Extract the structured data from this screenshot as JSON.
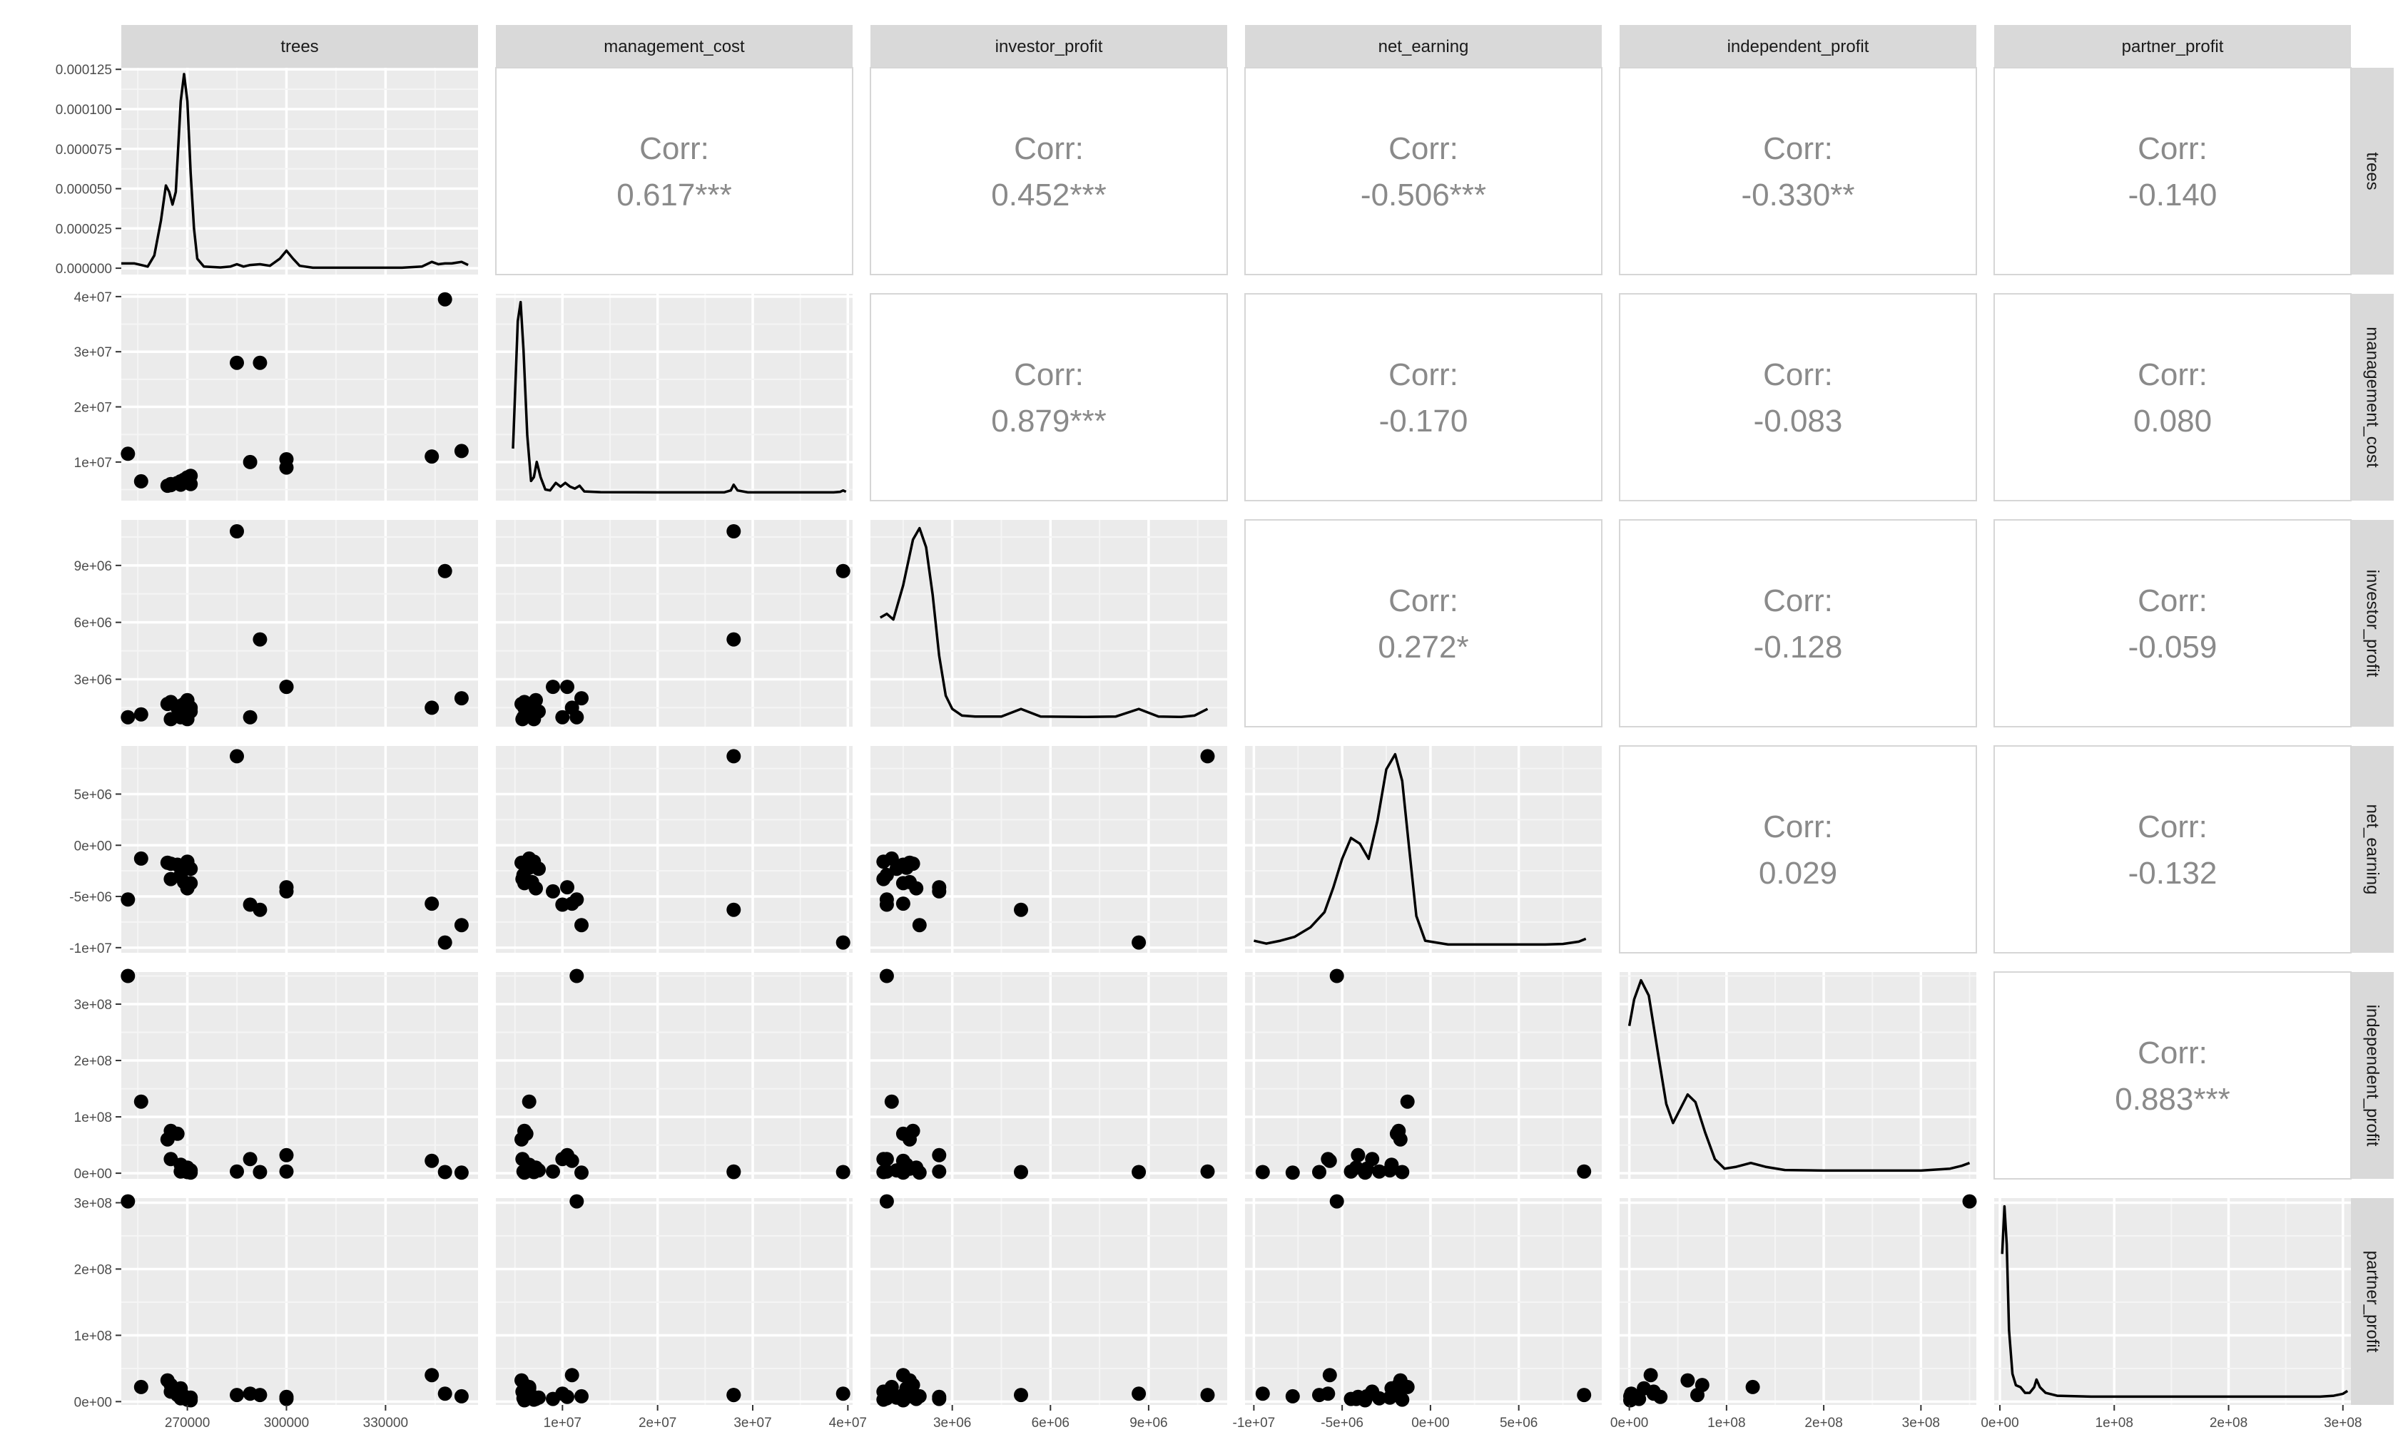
{
  "chart_data": {
    "type": "scatter",
    "variables": [
      "trees",
      "management_cost",
      "investor_profit",
      "net_earning",
      "independent_profit",
      "partner_profit"
    ],
    "corr_label": "Corr:",
    "correlations": [
      {
        "row": "trees",
        "col": "management_cost",
        "value": "0.617***"
      },
      {
        "row": "trees",
        "col": "investor_profit",
        "value": "0.452***"
      },
      {
        "row": "trees",
        "col": "net_earning",
        "value": "-0.506***"
      },
      {
        "row": "trees",
        "col": "independent_profit",
        "value": "-0.330**"
      },
      {
        "row": "trees",
        "col": "partner_profit",
        "value": "-0.140"
      },
      {
        "row": "management_cost",
        "col": "investor_profit",
        "value": "0.879***"
      },
      {
        "row": "management_cost",
        "col": "net_earning",
        "value": "-0.170"
      },
      {
        "row": "management_cost",
        "col": "independent_profit",
        "value": "-0.083"
      },
      {
        "row": "management_cost",
        "col": "partner_profit",
        "value": "0.080"
      },
      {
        "row": "investor_profit",
        "col": "net_earning",
        "value": "0.272*"
      },
      {
        "row": "investor_profit",
        "col": "independent_profit",
        "value": "-0.128"
      },
      {
        "row": "investor_profit",
        "col": "partner_profit",
        "value": "-0.059"
      },
      {
        "row": "net_earning",
        "col": "independent_profit",
        "value": "0.029"
      },
      {
        "row": "net_earning",
        "col": "partner_profit",
        "value": "-0.132"
      },
      {
        "row": "independent_profit",
        "col": "partner_profit",
        "value": "0.883***"
      }
    ],
    "axes": {
      "trees": {
        "range": [
          250000,
          358000
        ],
        "ticks": [
          270000,
          300000,
          330000
        ],
        "tick_labels": [
          "270000",
          "300000",
          "330000"
        ]
      },
      "management_cost": {
        "range": [
          3000000,
          40500000
        ],
        "ticks": [
          10000000,
          20000000,
          30000000,
          40000000
        ],
        "tick_labels": [
          "1e+07",
          "2e+07",
          "3e+07",
          "4e+07"
        ]
      },
      "investor_profit": {
        "range": [
          500000,
          11400000
        ],
        "ticks": [
          3000000,
          6000000,
          9000000
        ],
        "tick_labels": [
          "3e+06",
          "6e+06",
          "9e+06"
        ]
      },
      "net_earning": {
        "range": [
          -10500000,
          9700000
        ],
        "ticks": [
          -10000000,
          -5000000,
          0,
          5000000
        ],
        "tick_labels": [
          "-1e+07",
          "-5e+06",
          "0e+00",
          "5e+06"
        ]
      },
      "independent_profit": {
        "range": [
          -10000000,
          357000000
        ],
        "ticks": [
          0,
          100000000,
          200000000,
          300000000
        ],
        "tick_labels": [
          "0e+00",
          "1e+08",
          "2e+08",
          "3e+08"
        ]
      },
      "partner_profit": {
        "range": [
          -5000000,
          307000000
        ],
        "ticks": [
          0,
          100000000,
          200000000,
          300000000
        ],
        "tick_labels": [
          "0e+00",
          "1e+08",
          "2e+08",
          "3e+08"
        ]
      }
    },
    "density_axis": {
      "range": [
        -4e-06,
        0.000126
      ],
      "ticks": [
        0,
        2.5e-05,
        5e-05,
        7.5e-05,
        0.0001,
        0.000125
      ],
      "tick_labels": [
        "0.000000",
        "0.000025",
        "0.000050",
        "0.000075",
        "0.000100",
        "0.000125"
      ]
    },
    "points": [
      {
        "trees": 252000,
        "management_cost": 11500000,
        "investor_profit": 1000000,
        "net_earning": -5300000,
        "independent_profit": 350000000,
        "partner_profit": 302000000
      },
      {
        "trees": 256000,
        "management_cost": 6500000,
        "investor_profit": 1150000,
        "net_earning": -1300000,
        "independent_profit": 127000000,
        "partner_profit": 22000000
      },
      {
        "trees": 264000,
        "management_cost": 5700000,
        "investor_profit": 1700000,
        "net_earning": -1700000,
        "independent_profit": 60000000,
        "partner_profit": 32000000
      },
      {
        "trees": 265000,
        "management_cost": 6000000,
        "investor_profit": 1800000,
        "net_earning": -1800000,
        "independent_profit": 75000000,
        "partner_profit": 25000000
      },
      {
        "trees": 265000,
        "management_cost": 5800000,
        "investor_profit": 900000,
        "net_earning": -3300000,
        "independent_profit": 25000000,
        "partner_profit": 15000000
      },
      {
        "trees": 267000,
        "management_cost": 6200000,
        "investor_profit": 1500000,
        "net_earning": -1900000,
        "independent_profit": 70000000,
        "partner_profit": 10000000
      },
      {
        "trees": 268000,
        "management_cost": 6500000,
        "investor_profit": 1600000,
        "net_earning": -2200000,
        "independent_profit": 15000000,
        "partner_profit": 20000000
      },
      {
        "trees": 268000,
        "management_cost": 5900000,
        "investor_profit": 1000000,
        "net_earning": -2900000,
        "independent_profit": 3000000,
        "partner_profit": 5000000
      },
      {
        "trees": 269000,
        "management_cost": 6800000,
        "investor_profit": 1700000,
        "net_earning": -3600000,
        "independent_profit": 8000000,
        "partner_profit": 8000000
      },
      {
        "trees": 270000,
        "management_cost": 7200000,
        "investor_profit": 1900000,
        "net_earning": -4200000,
        "independent_profit": 10000000,
        "partner_profit": 4000000
      },
      {
        "trees": 270000,
        "management_cost": 7000000,
        "investor_profit": 900000,
        "net_earning": -1600000,
        "independent_profit": 2000000,
        "partner_profit": 3000000
      },
      {
        "trees": 271000,
        "management_cost": 7500000,
        "investor_profit": 1300000,
        "net_earning": -2300000,
        "independent_profit": 5000000,
        "partner_profit": 6000000
      },
      {
        "trees": 271000,
        "management_cost": 6000000,
        "investor_profit": 1500000,
        "net_earning": -3700000,
        "independent_profit": 1000000,
        "partner_profit": 2000000
      },
      {
        "trees": 285000,
        "management_cost": 28000000,
        "investor_profit": 10800000,
        "net_earning": 8700000,
        "independent_profit": 3000000,
        "partner_profit": 10000000
      },
      {
        "trees": 289000,
        "management_cost": 10000000,
        "investor_profit": 1000000,
        "net_earning": -5800000,
        "independent_profit": 25000000,
        "partner_profit": 12000000
      },
      {
        "trees": 292000,
        "management_cost": 28000000,
        "investor_profit": 5100000,
        "net_earning": -6300000,
        "independent_profit": 2000000,
        "partner_profit": 10000000
      },
      {
        "trees": 300000,
        "management_cost": 10500000,
        "investor_profit": 2600000,
        "net_earning": -4100000,
        "independent_profit": 32000000,
        "partner_profit": 7000000
      },
      {
        "trees": 300000,
        "management_cost": 9000000,
        "investor_profit": 2600000,
        "net_earning": -4500000,
        "independent_profit": 3000000,
        "partner_profit": 4000000
      },
      {
        "trees": 344000,
        "management_cost": 11000000,
        "investor_profit": 1500000,
        "net_earning": -5700000,
        "independent_profit": 22000000,
        "partner_profit": 40000000
      },
      {
        "trees": 348000,
        "management_cost": 39500000,
        "investor_profit": 8700000,
        "net_earning": -9500000,
        "independent_profit": 2000000,
        "partner_profit": 12000000
      },
      {
        "trees": 353000,
        "management_cost": 12000000,
        "investor_profit": 2000000,
        "net_earning": -7800000,
        "independent_profit": 1000000,
        "partner_profit": 8000000
      }
    ],
    "densities": {
      "trees": [
        [
          250000,
          3e-06
        ],
        [
          252000,
          3e-06
        ],
        [
          254000,
          3e-06
        ],
        [
          256000,
          2e-06
        ],
        [
          258000,
          1e-06
        ],
        [
          260000,
          8e-06
        ],
        [
          262000,
          3e-05
        ],
        [
          263500,
          5.2e-05
        ],
        [
          264500,
          4.8e-05
        ],
        [
          265500,
          4e-05
        ],
        [
          266500,
          4.8e-05
        ],
        [
          268000,
          0.000105
        ],
        [
          269000,
          0.000122
        ],
        [
          270000,
          0.000105
        ],
        [
          271000,
          6e-05
        ],
        [
          272000,
          2.5e-05
        ],
        [
          273000,
          6e-06
        ],
        [
          275000,
          1e-06
        ],
        [
          280000,
          5e-07
        ],
        [
          283000,
          1e-06
        ],
        [
          285000,
          2.5e-06
        ],
        [
          287000,
          1e-06
        ],
        [
          289000,
          2e-06
        ],
        [
          292000,
          2.5e-06
        ],
        [
          295000,
          1.5e-06
        ],
        [
          298000,
          6e-06
        ],
        [
          300000,
          1.1e-05
        ],
        [
          302000,
          6e-06
        ],
        [
          304000,
          1.5e-06
        ],
        [
          308000,
          3e-07
        ],
        [
          320000,
          3e-07
        ],
        [
          335000,
          3e-07
        ],
        [
          341000,
          1e-06
        ],
        [
          344000,
          4e-06
        ],
        [
          346000,
          2.5e-06
        ],
        [
          348000,
          3e-06
        ],
        [
          350000,
          3e-06
        ],
        [
          353000,
          4e-06
        ],
        [
          355000,
          2e-06
        ]
      ],
      "management_cost": [
        [
          4800000,
          0.23
        ],
        [
          5300000,
          0.9
        ],
        [
          5600000,
          1.0
        ],
        [
          5900000,
          0.75
        ],
        [
          6300000,
          0.3
        ],
        [
          6700000,
          0.06
        ],
        [
          7000000,
          0.08
        ],
        [
          7300000,
          0.16
        ],
        [
          7700000,
          0.08
        ],
        [
          8200000,
          0.015
        ],
        [
          8700000,
          0.01
        ],
        [
          9300000,
          0.05
        ],
        [
          9800000,
          0.03
        ],
        [
          10300000,
          0.05
        ],
        [
          10800000,
          0.03
        ],
        [
          11300000,
          0.02
        ],
        [
          11800000,
          0.035
        ],
        [
          12300000,
          0.005
        ],
        [
          14000000,
          0.001
        ],
        [
          20000000,
          0.0
        ],
        [
          27000000,
          0.0
        ],
        [
          27700000,
          0.01
        ],
        [
          28000000,
          0.04
        ],
        [
          28400000,
          0.01
        ],
        [
          29500000,
          0.0
        ],
        [
          38500000,
          0.0
        ],
        [
          39200000,
          0.003
        ],
        [
          39500000,
          0.01
        ],
        [
          39800000,
          0.003
        ]
      ],
      "investor_profit": [
        [
          800000,
          0.53
        ],
        [
          1000000,
          0.55
        ],
        [
          1200000,
          0.52
        ],
        [
          1500000,
          0.7
        ],
        [
          1800000,
          0.94
        ],
        [
          2000000,
          1.0
        ],
        [
          2200000,
          0.9
        ],
        [
          2400000,
          0.65
        ],
        [
          2600000,
          0.33
        ],
        [
          2800000,
          0.12
        ],
        [
          3000000,
          0.05
        ],
        [
          3300000,
          0.015
        ],
        [
          3700000,
          0.01
        ],
        [
          4500000,
          0.01
        ],
        [
          5100000,
          0.05
        ],
        [
          5700000,
          0.01
        ],
        [
          7000000,
          0.008
        ],
        [
          8000000,
          0.01
        ],
        [
          8700000,
          0.05
        ],
        [
          9300000,
          0.01
        ],
        [
          10000000,
          0.008
        ],
        [
          10400000,
          0.015
        ],
        [
          10800000,
          0.05
        ]
      ],
      "net_earning": [
        [
          -10000000,
          0.02
        ],
        [
          -9300000,
          0.005
        ],
        [
          -8500000,
          0.02
        ],
        [
          -7700000,
          0.04
        ],
        [
          -6800000,
          0.09
        ],
        [
          -6000000,
          0.17
        ],
        [
          -5500000,
          0.3
        ],
        [
          -5000000,
          0.45
        ],
        [
          -4500000,
          0.56
        ],
        [
          -4000000,
          0.53
        ],
        [
          -3500000,
          0.45
        ],
        [
          -3000000,
          0.65
        ],
        [
          -2500000,
          0.92
        ],
        [
          -2000000,
          1.0
        ],
        [
          -1600000,
          0.86
        ],
        [
          -1200000,
          0.5
        ],
        [
          -800000,
          0.15
        ],
        [
          -300000,
          0.02
        ],
        [
          1000000,
          0.0
        ],
        [
          6500000,
          0.0
        ],
        [
          7500000,
          0.003
        ],
        [
          8400000,
          0.015
        ],
        [
          8800000,
          0.03
        ]
      ],
      "independent_profit": [
        [
          0,
          0.76
        ],
        [
          5000000,
          0.9
        ],
        [
          12000000,
          1.0
        ],
        [
          20000000,
          0.92
        ],
        [
          30000000,
          0.6
        ],
        [
          38000000,
          0.35
        ],
        [
          45000000,
          0.25
        ],
        [
          52000000,
          0.32
        ],
        [
          60000000,
          0.4
        ],
        [
          68000000,
          0.36
        ],
        [
          78000000,
          0.2
        ],
        [
          88000000,
          0.06
        ],
        [
          98000000,
          0.01
        ],
        [
          110000000,
          0.02
        ],
        [
          125000000,
          0.04
        ],
        [
          140000000,
          0.02
        ],
        [
          160000000,
          0.003
        ],
        [
          200000000,
          0.0
        ],
        [
          300000000,
          0.0
        ],
        [
          330000000,
          0.01
        ],
        [
          342000000,
          0.025
        ],
        [
          350000000,
          0.04
        ]
      ],
      "partner_profit": [
        [
          2000000,
          0.75
        ],
        [
          4000000,
          1.0
        ],
        [
          6000000,
          0.8
        ],
        [
          8000000,
          0.35
        ],
        [
          11000000,
          0.12
        ],
        [
          14000000,
          0.06
        ],
        [
          18000000,
          0.05
        ],
        [
          22000000,
          0.02
        ],
        [
          26000000,
          0.02
        ],
        [
          30000000,
          0.05
        ],
        [
          32000000,
          0.09
        ],
        [
          35000000,
          0.05
        ],
        [
          40000000,
          0.02
        ],
        [
          50000000,
          0.005
        ],
        [
          80000000,
          0.0
        ],
        [
          280000000,
          0.0
        ],
        [
          292000000,
          0.005
        ],
        [
          300000000,
          0.015
        ],
        [
          304000000,
          0.03
        ]
      ]
    }
  }
}
